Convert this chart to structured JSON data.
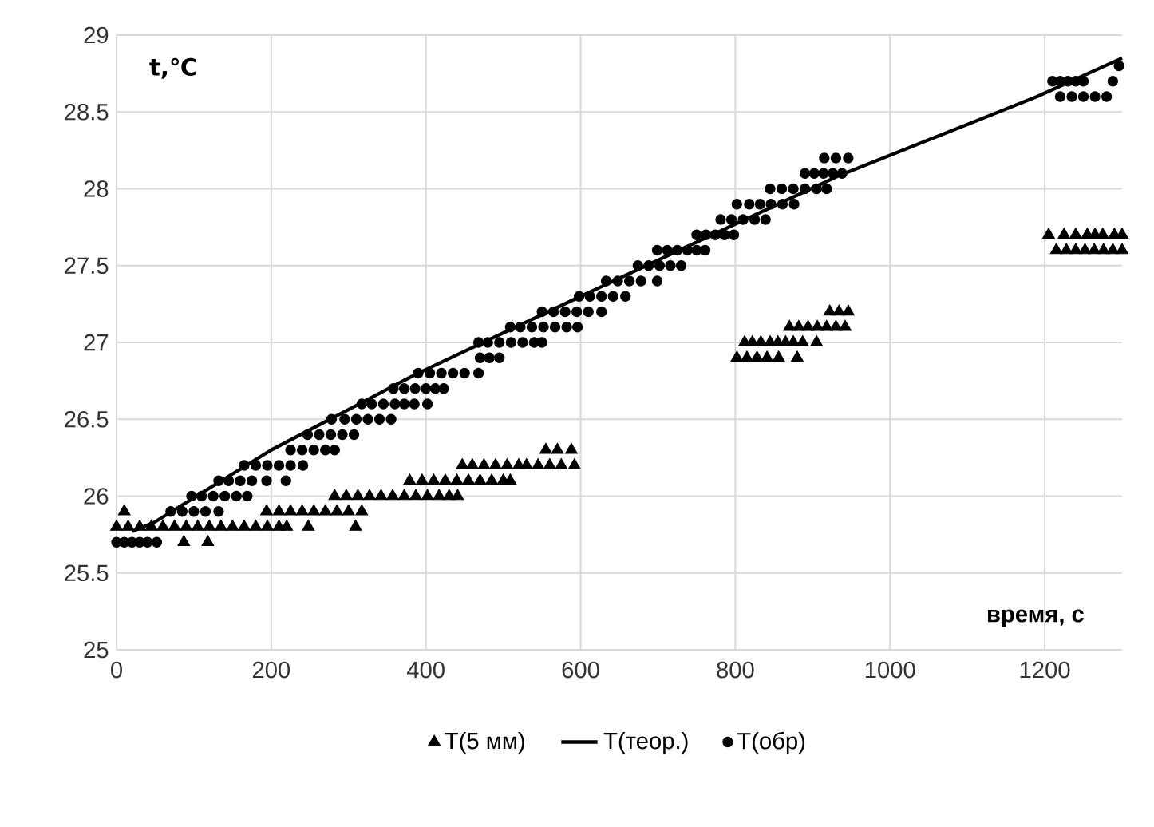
{
  "chart_data": {
    "type": "scatter",
    "xlabel": "время, с",
    "ylabel": "t,℃",
    "xlim": [
      0,
      1300
    ],
    "xticks": [
      0,
      200,
      400,
      600,
      800,
      1000,
      1200
    ],
    "ylim": [
      25,
      29
    ],
    "yticks": [
      25,
      25.5,
      26,
      26.5,
      27,
      27.5,
      28,
      28.5,
      29
    ],
    "grid": true,
    "legend": "bottom",
    "series": [
      {
        "name": "T(5 мм)",
        "marker": "triangle",
        "color": "#000000",
        "x": [
          10,
          194,
          210,
          225,
          240,
          255,
          270,
          285,
          300,
          317,
          0,
          15,
          30,
          45,
          60,
          75,
          90,
          105,
          120,
          135,
          150,
          165,
          180,
          195,
          210,
          220,
          248,
          309,
          87,
          118,
          282,
          297,
          312,
          327,
          342,
          357,
          372,
          387,
          402,
          417,
          430,
          441,
          379,
          395,
          410,
          425,
          440,
          455,
          470,
          485,
          500,
          509,
          447,
          460,
          475,
          490,
          505,
          520,
          530,
          545,
          560,
          575,
          592,
          555,
          570,
          588,
          802,
          815,
          828,
          841,
          856,
          880,
          812,
          822,
          833,
          845,
          855,
          865,
          875,
          887,
          905,
          870,
          882,
          894,
          906,
          918,
          930,
          942,
          922,
          934,
          946,
          1205,
          1225,
          1240,
          1255,
          1265,
          1275,
          1290,
          1300,
          1215,
          1228,
          1240,
          1252,
          1264,
          1276,
          1288,
          1300
        ],
        "values": [
          25.9,
          25.9,
          25.9,
          25.9,
          25.9,
          25.9,
          25.9,
          25.9,
          25.9,
          25.9,
          25.8,
          25.8,
          25.8,
          25.8,
          25.8,
          25.8,
          25.8,
          25.8,
          25.8,
          25.8,
          25.8,
          25.8,
          25.8,
          25.8,
          25.8,
          25.8,
          25.8,
          25.8,
          25.7,
          25.7,
          26.0,
          26.0,
          26.0,
          26.0,
          26.0,
          26.0,
          26.0,
          26.0,
          26.0,
          26.0,
          26.0,
          26.0,
          26.1,
          26.1,
          26.1,
          26.1,
          26.1,
          26.1,
          26.1,
          26.1,
          26.1,
          26.1,
          26.2,
          26.2,
          26.2,
          26.2,
          26.2,
          26.2,
          26.2,
          26.2,
          26.2,
          26.2,
          26.2,
          26.3,
          26.3,
          26.3,
          26.9,
          26.9,
          26.9,
          26.9,
          26.9,
          26.9,
          27.0,
          27.0,
          27.0,
          27.0,
          27.0,
          27.0,
          27.0,
          27.0,
          27.0,
          27.1,
          27.1,
          27.1,
          27.1,
          27.1,
          27.1,
          27.1,
          27.2,
          27.2,
          27.2,
          27.7,
          27.7,
          27.7,
          27.7,
          27.7,
          27.7,
          27.7,
          27.7,
          27.6,
          27.6,
          27.6,
          27.6,
          27.6,
          27.6,
          27.6,
          27.6
        ]
      },
      {
        "name": "T(теор.)",
        "type": "line",
        "marker": "none",
        "line_style": "solid",
        "color": "#000000",
        "x": [
          20,
          49,
          200,
          386,
          600,
          936,
          1190,
          1300
        ],
        "values": [
          25.77,
          25.83,
          26.3,
          26.79,
          27.3,
          28.09,
          28.6,
          28.85
        ]
      },
      {
        "name": "T(обр)",
        "marker": "circle",
        "color": "#000000",
        "x": [
          0,
          10,
          20,
          30,
          40,
          52,
          70,
          85,
          100,
          115,
          132,
          97,
          110,
          125,
          140,
          155,
          169,
          132,
          145,
          160,
          175,
          194,
          219,
          165,
          180,
          195,
          210,
          225,
          241,
          225,
          240,
          255,
          270,
          282,
          247,
          262,
          277,
          292,
          307,
          278,
          295,
          310,
          325,
          340,
          355,
          317,
          330,
          345,
          360,
          372,
          385,
          402,
          358,
          372,
          386,
          400,
          412,
          423,
          390,
          405,
          420,
          435,
          450,
          468,
          470,
          482,
          495,
          468,
          480,
          495,
          510,
          525,
          540,
          550,
          509,
          522,
          537,
          552,
          567,
          582,
          596,
          550,
          565,
          580,
          595,
          610,
          627,
          598,
          612,
          627,
          642,
          658,
          633,
          648,
          663,
          678,
          699,
          674,
          688,
          702,
          716,
          730,
          699,
          712,
          725,
          738,
          750,
          761,
          750,
          762,
          774,
          786,
          798,
          781,
          795,
          810,
          825,
          839,
          802,
          818,
          832,
          846,
          861,
          876,
          845,
          860,
          875,
          890,
          905,
          918,
          890,
          902,
          914,
          926,
          938,
          915,
          930,
          946,
          1210,
          1220,
          1230,
          1240,
          1250,
          1288,
          1220,
          1235,
          1250,
          1265,
          1280,
          1296
        ],
        "values": [
          25.7,
          25.7,
          25.7,
          25.7,
          25.7,
          25.7,
          25.9,
          25.9,
          25.9,
          25.9,
          25.9,
          26.0,
          26.0,
          26.0,
          26.0,
          26.0,
          26.0,
          26.1,
          26.1,
          26.1,
          26.1,
          26.1,
          26.1,
          26.2,
          26.2,
          26.2,
          26.2,
          26.2,
          26.2,
          26.3,
          26.3,
          26.3,
          26.3,
          26.3,
          26.4,
          26.4,
          26.4,
          26.4,
          26.4,
          26.5,
          26.5,
          26.5,
          26.5,
          26.5,
          26.5,
          26.6,
          26.6,
          26.6,
          26.6,
          26.6,
          26.6,
          26.6,
          26.7,
          26.7,
          26.7,
          26.7,
          26.7,
          26.7,
          26.8,
          26.8,
          26.8,
          26.8,
          26.8,
          26.8,
          26.9,
          26.9,
          26.9,
          27.0,
          27.0,
          27.0,
          27.0,
          27.0,
          27.0,
          27.0,
          27.1,
          27.1,
          27.1,
          27.1,
          27.1,
          27.1,
          27.1,
          27.2,
          27.2,
          27.2,
          27.2,
          27.2,
          27.2,
          27.3,
          27.3,
          27.3,
          27.3,
          27.3,
          27.4,
          27.4,
          27.4,
          27.4,
          27.4,
          27.5,
          27.5,
          27.5,
          27.5,
          27.5,
          27.6,
          27.6,
          27.6,
          27.6,
          27.6,
          27.6,
          27.7,
          27.7,
          27.7,
          27.7,
          27.7,
          27.8,
          27.8,
          27.8,
          27.8,
          27.8,
          27.9,
          27.9,
          27.9,
          27.9,
          27.9,
          27.9,
          28.0,
          28.0,
          28.0,
          28.0,
          28.0,
          28.0,
          28.1,
          28.1,
          28.1,
          28.1,
          28.1,
          28.2,
          28.2,
          28.2,
          28.7,
          28.7,
          28.7,
          28.7,
          28.7,
          28.7,
          28.6,
          28.6,
          28.6,
          28.6,
          28.6,
          28.8
        ]
      }
    ]
  }
}
